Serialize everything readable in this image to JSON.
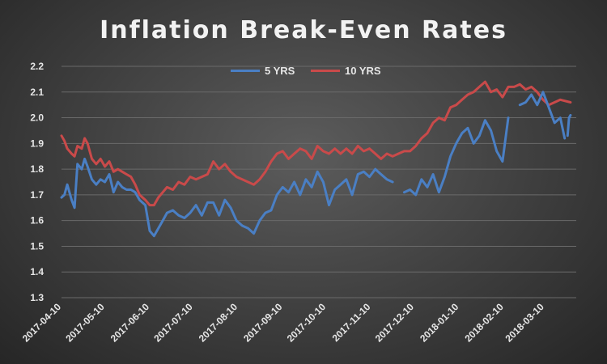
{
  "chart_data": {
    "type": "line",
    "title": "Inflation Break-Even Rates",
    "xlabel": "",
    "ylabel": "",
    "ylim": [
      1.3,
      2.2
    ],
    "yticks": [
      "1.3",
      "1.4",
      "1.5",
      "1.6",
      "1.7",
      "1.8",
      "1.9",
      "2.0",
      "2.1",
      "2.2"
    ],
    "xticks": [
      "2017-04-10",
      "2017-05-10",
      "2017-06-10",
      "2017-07-10",
      "2017-08-10",
      "2017-09-10",
      "2017-10-10",
      "2017-11-10",
      "2017-12-10",
      "2018-01-10",
      "2018-02-10",
      "2018-03-10"
    ],
    "grid": true,
    "legend": "top",
    "series": [
      {
        "name": "5 YRS",
        "color": "#4a7fc4",
        "x": [
          "2017-04-10",
          "2017-04-12",
          "2017-04-14",
          "2017-04-17",
          "2017-04-19",
          "2017-04-21",
          "2017-04-24",
          "2017-04-26",
          "2017-04-28",
          "2017-05-01",
          "2017-05-04",
          "2017-05-07",
          "2017-05-10",
          "2017-05-13",
          "2017-05-16",
          "2017-05-19",
          "2017-05-22",
          "2017-05-25",
          "2017-05-28",
          "2017-05-31",
          "2017-06-03",
          "2017-06-07",
          "2017-06-10",
          "2017-06-13",
          "2017-06-16",
          "2017-06-19",
          "2017-06-22",
          "2017-06-26",
          "2017-06-30",
          "2017-07-04",
          "2017-07-08",
          "2017-07-12",
          "2017-07-16",
          "2017-07-20",
          "2017-07-24",
          "2017-07-28",
          "2017-08-01",
          "2017-08-05",
          "2017-08-09",
          "2017-08-13",
          "2017-08-17",
          "2017-08-21",
          "2017-08-25",
          "2017-08-29",
          "2017-09-02",
          "2017-09-06",
          "2017-09-10",
          "2017-09-14",
          "2017-09-18",
          "2017-09-22",
          "2017-09-26",
          "2017-09-30",
          "2017-10-04",
          "2017-10-08",
          "2017-10-12",
          "2017-10-16",
          "2017-10-20",
          "2017-10-24",
          "2017-10-28",
          "2017-11-01",
          "2017-11-05",
          "2017-11-09",
          "2017-11-13",
          "2017-11-17",
          "2017-11-21",
          "2017-11-25",
          "2017-11-29",
          "2017-12-03",
          "2017-12-07",
          "2017-12-11",
          "2017-12-15",
          "2017-12-19",
          "2017-12-23",
          "2017-12-27",
          "2017-12-31",
          "2018-01-04",
          "2018-01-08",
          "2018-01-12",
          "2018-01-16",
          "2018-01-20",
          "2018-01-24",
          "2018-01-28",
          "2018-02-01",
          "2018-02-05",
          "2018-02-09",
          "2018-02-13",
          "2018-02-17",
          "2018-02-21",
          "2018-02-25",
          "2018-03-01",
          "2018-03-05",
          "2018-03-09",
          "2018-03-13",
          "2018-03-17",
          "2018-03-21",
          "2018-03-24"
        ],
        "y": [
          1.69,
          1.7,
          1.74,
          1.68,
          1.65,
          1.82,
          1.8,
          1.84,
          1.81,
          1.76,
          1.74,
          1.76,
          1.75,
          1.78,
          1.71,
          1.75,
          1.73,
          1.72,
          1.72,
          1.71,
          1.68,
          1.66,
          1.56,
          1.54,
          1.57,
          1.6,
          1.63,
          1.64,
          1.62,
          1.61,
          1.63,
          1.66,
          1.62,
          1.67,
          1.67,
          1.62,
          1.68,
          1.65,
          1.6,
          1.58,
          1.57,
          1.55,
          1.6,
          1.63,
          1.64,
          1.7,
          1.73,
          1.71,
          1.75,
          1.7,
          1.76,
          1.73,
          1.79,
          1.75,
          1.66,
          1.72,
          1.74,
          1.76,
          1.7,
          1.78,
          1.79,
          1.77,
          1.8,
          1.78,
          1.76,
          1.75,
          null,
          1.71,
          1.72,
          1.7,
          1.76,
          1.73,
          1.78,
          1.71,
          1.77,
          1.85,
          1.9,
          1.94,
          1.96,
          1.9,
          1.93,
          1.99,
          1.95,
          1.87,
          1.83,
          2.0,
          null,
          2.05,
          2.06,
          2.09,
          2.05,
          2.1,
          2.04,
          1.98,
          2.0,
          1.92
        ],
        "x2": [
          "2018-03-26",
          "2018-03-27",
          "2018-03-28"
        ],
        "y2": [
          1.93,
          2.0,
          2.01
        ]
      },
      {
        "name": "10 YRS",
        "color": "#c94a4a",
        "x": [
          "2017-04-10",
          "2017-04-12",
          "2017-04-14",
          "2017-04-17",
          "2017-04-19",
          "2017-04-21",
          "2017-04-24",
          "2017-04-26",
          "2017-04-28",
          "2017-05-01",
          "2017-05-04",
          "2017-05-07",
          "2017-05-10",
          "2017-05-13",
          "2017-05-16",
          "2017-05-19",
          "2017-05-22",
          "2017-05-25",
          "2017-05-28",
          "2017-05-31",
          "2017-06-03",
          "2017-06-07",
          "2017-06-10",
          "2017-06-13",
          "2017-06-16",
          "2017-06-19",
          "2017-06-22",
          "2017-06-26",
          "2017-06-30",
          "2017-07-04",
          "2017-07-08",
          "2017-07-12",
          "2017-07-16",
          "2017-07-20",
          "2017-07-24",
          "2017-07-28",
          "2017-08-01",
          "2017-08-05",
          "2017-08-09",
          "2017-08-13",
          "2017-08-17",
          "2017-08-21",
          "2017-08-25",
          "2017-08-29",
          "2017-09-02",
          "2017-09-06",
          "2017-09-10",
          "2017-09-14",
          "2017-09-18",
          "2017-09-22",
          "2017-09-26",
          "2017-09-30",
          "2017-10-04",
          "2017-10-08",
          "2017-10-12",
          "2017-10-16",
          "2017-10-20",
          "2017-10-24",
          "2017-10-28",
          "2017-11-01",
          "2017-11-05",
          "2017-11-09",
          "2017-11-13",
          "2017-11-17",
          "2017-11-21",
          "2017-11-25",
          "2017-11-29",
          "2017-12-03",
          "2017-12-07",
          "2017-12-11",
          "2017-12-15",
          "2017-12-19",
          "2017-12-23",
          "2017-12-27",
          "2017-12-31",
          "2018-01-04",
          "2018-01-08",
          "2018-01-12",
          "2018-01-16",
          "2018-01-20",
          "2018-01-24",
          "2018-01-28",
          "2018-02-01",
          "2018-02-05",
          "2018-02-09",
          "2018-02-13",
          "2018-02-17",
          "2018-02-21",
          "2018-02-25",
          "2018-03-01",
          "2018-03-05",
          "2018-03-09",
          "2018-03-13",
          "2018-03-17",
          "2018-03-21",
          "2018-03-28"
        ],
        "y": [
          1.93,
          1.91,
          1.88,
          1.86,
          1.85,
          1.89,
          1.88,
          1.92,
          1.9,
          1.84,
          1.82,
          1.84,
          1.81,
          1.83,
          1.79,
          1.8,
          1.79,
          1.78,
          1.77,
          1.74,
          1.7,
          1.68,
          1.66,
          1.66,
          1.69,
          1.71,
          1.73,
          1.72,
          1.75,
          1.74,
          1.77,
          1.76,
          1.77,
          1.78,
          1.83,
          1.8,
          1.82,
          1.79,
          1.77,
          1.76,
          1.75,
          1.74,
          1.76,
          1.79,
          1.83,
          1.86,
          1.87,
          1.84,
          1.86,
          1.88,
          1.87,
          1.84,
          1.89,
          1.87,
          1.86,
          1.88,
          1.86,
          1.88,
          1.86,
          1.89,
          1.87,
          1.88,
          1.86,
          1.84,
          1.86,
          1.85,
          1.86,
          1.87,
          1.87,
          1.89,
          1.92,
          1.94,
          1.98,
          2.0,
          1.99,
          2.04,
          2.05,
          2.07,
          2.09,
          2.1,
          2.12,
          2.14,
          2.1,
          2.11,
          2.08,
          2.12,
          2.12,
          2.13,
          2.11,
          2.12,
          2.1,
          2.07,
          2.05,
          2.06,
          2.07,
          2.06
        ]
      }
    ]
  }
}
